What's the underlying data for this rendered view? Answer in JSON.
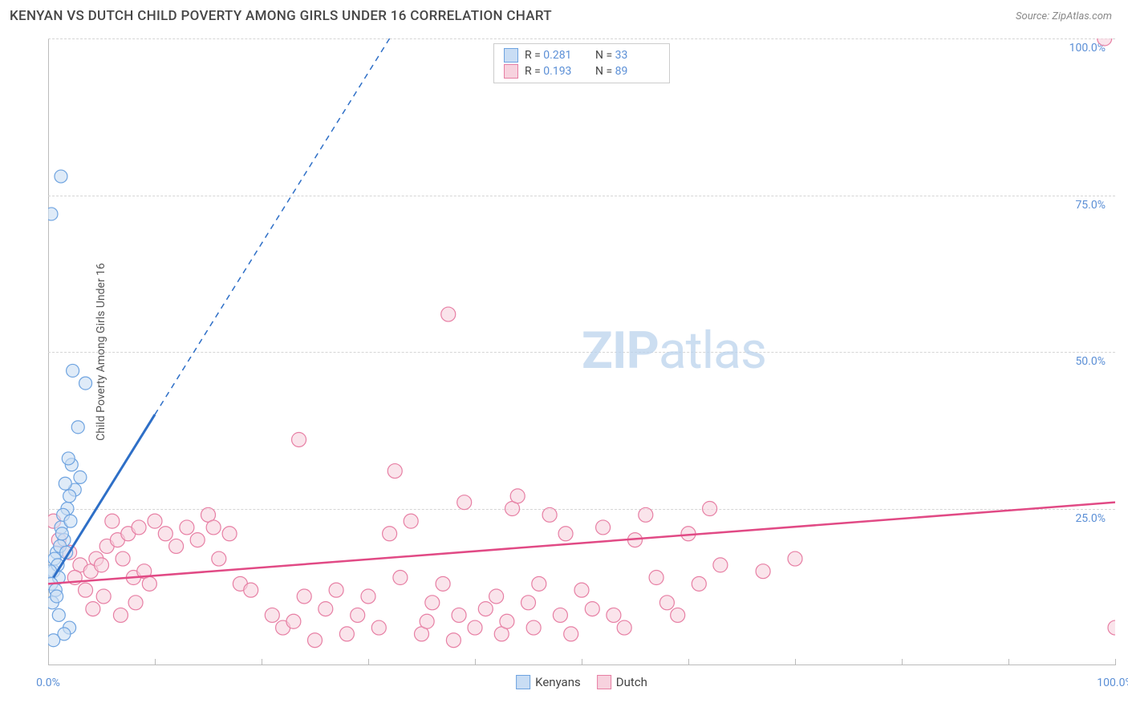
{
  "header": {
    "title": "KENYAN VS DUTCH CHILD POVERTY AMONG GIRLS UNDER 16 CORRELATION CHART",
    "source": "Source: ZipAtlas.com"
  },
  "y_axis_label": "Child Poverty Among Girls Under 16",
  "watermark": {
    "bold": "ZIP",
    "light": "atlas"
  },
  "chart": {
    "type": "scatter",
    "xlim": [
      0,
      100
    ],
    "ylim": [
      0,
      100
    ],
    "x_ticks": [
      0,
      10,
      20,
      30,
      40,
      50,
      60,
      70,
      80,
      90,
      100
    ],
    "x_tick_labels": {
      "0": "0.0%",
      "100": "100.0%"
    },
    "y_ticks": [
      25,
      50,
      75,
      100
    ],
    "y_tick_labels": {
      "25": "25.0%",
      "50": "50.0%",
      "75": "75.0%",
      "100": "100.0%"
    },
    "grid_color": "#d5d5d5",
    "background_color": "#ffffff"
  },
  "series": {
    "kenyans": {
      "label": "Kenyans",
      "r_value": "0.281",
      "n_value": "33",
      "fill": "#c9ddf4",
      "stroke": "#6ea3e0",
      "line_color": "#2e6fc7",
      "marker_radius": 8,
      "points": [
        [
          0.8,
          18
        ],
        [
          0.5,
          15
        ],
        [
          1.0,
          14
        ],
        [
          1.2,
          22
        ],
        [
          0.6,
          17
        ],
        [
          1.5,
          20
        ],
        [
          0.3,
          13
        ],
        [
          0.9,
          16
        ],
        [
          1.1,
          19
        ],
        [
          2.5,
          28
        ],
        [
          1.8,
          25
        ],
        [
          3.0,
          30
        ],
        [
          2.2,
          32
        ],
        [
          1.4,
          24
        ],
        [
          0.7,
          12
        ],
        [
          1.3,
          21
        ],
        [
          2.0,
          27
        ],
        [
          1.6,
          29
        ],
        [
          0.4,
          10
        ],
        [
          1.9,
          33
        ],
        [
          2.8,
          38
        ],
        [
          1.0,
          8
        ],
        [
          2.0,
          6
        ],
        [
          1.5,
          5
        ],
        [
          0.5,
          4
        ],
        [
          3.5,
          45
        ],
        [
          2.3,
          47
        ],
        [
          1.2,
          78
        ],
        [
          0.3,
          72
        ],
        [
          0.2,
          15
        ],
        [
          0.8,
          11
        ],
        [
          1.7,
          18
        ],
        [
          2.1,
          23
        ]
      ],
      "trend_solid": {
        "x1": 0.5,
        "y1": 14,
        "x2": 10,
        "y2": 40
      },
      "trend_dash": {
        "x1": 10,
        "y1": 40,
        "x2": 32,
        "y2": 100
      }
    },
    "dutch": {
      "label": "Dutch",
      "r_value": "0.193",
      "n_value": "89",
      "fill": "#f7d2de",
      "stroke": "#e77fa4",
      "line_color": "#e14a85",
      "marker_radius": 9,
      "points": [
        [
          0.5,
          23
        ],
        [
          1.0,
          20
        ],
        [
          2.0,
          18
        ],
        [
          3.0,
          16
        ],
        [
          4.0,
          15
        ],
        [
          4.5,
          17
        ],
        [
          5.0,
          16
        ],
        [
          5.5,
          19
        ],
        [
          6.0,
          23
        ],
        [
          6.5,
          20
        ],
        [
          7.0,
          17
        ],
        [
          7.5,
          21
        ],
        [
          8.0,
          14
        ],
        [
          8.5,
          22
        ],
        [
          9.0,
          15
        ],
        [
          10.0,
          23
        ],
        [
          11.0,
          21
        ],
        [
          12.0,
          19
        ],
        [
          13.0,
          22
        ],
        [
          14.0,
          20
        ],
        [
          15.0,
          24
        ],
        [
          15.5,
          22
        ],
        [
          16.0,
          17
        ],
        [
          17.0,
          21
        ],
        [
          18.0,
          13
        ],
        [
          19.0,
          12
        ],
        [
          21.0,
          8
        ],
        [
          22.0,
          6
        ],
        [
          23.0,
          7
        ],
        [
          23.5,
          36
        ],
        [
          24.0,
          11
        ],
        [
          25.0,
          4
        ],
        [
          26.0,
          9
        ],
        [
          27.0,
          12
        ],
        [
          28.0,
          5
        ],
        [
          29.0,
          8
        ],
        [
          30.0,
          11
        ],
        [
          31.0,
          6
        ],
        [
          32.0,
          21
        ],
        [
          32.5,
          31
        ],
        [
          33.0,
          14
        ],
        [
          34.0,
          23
        ],
        [
          35.0,
          5
        ],
        [
          35.5,
          7
        ],
        [
          36.0,
          10
        ],
        [
          37.0,
          13
        ],
        [
          37.5,
          56
        ],
        [
          38.0,
          4
        ],
        [
          38.5,
          8
        ],
        [
          39.0,
          26
        ],
        [
          40.0,
          6
        ],
        [
          41.0,
          9
        ],
        [
          42.0,
          11
        ],
        [
          42.5,
          5
        ],
        [
          43.0,
          7
        ],
        [
          43.5,
          25
        ],
        [
          44.0,
          27
        ],
        [
          45.0,
          10
        ],
        [
          45.5,
          6
        ],
        [
          46.0,
          13
        ],
        [
          47.0,
          24
        ],
        [
          48.0,
          8
        ],
        [
          48.5,
          21
        ],
        [
          49.0,
          5
        ],
        [
          50.0,
          12
        ],
        [
          51.0,
          9
        ],
        [
          52.0,
          22
        ],
        [
          53.0,
          8
        ],
        [
          54.0,
          6
        ],
        [
          55.0,
          20
        ],
        [
          56.0,
          24
        ],
        [
          57.0,
          14
        ],
        [
          58.0,
          10
        ],
        [
          59.0,
          8
        ],
        [
          60.0,
          21
        ],
        [
          61.0,
          13
        ],
        [
          62.0,
          25
        ],
        [
          63.0,
          16
        ],
        [
          67.0,
          15
        ],
        [
          70.0,
          17
        ],
        [
          99.0,
          100
        ],
        [
          100.0,
          6
        ],
        [
          2.5,
          14
        ],
        [
          3.5,
          12
        ],
        [
          4.2,
          9
        ],
        [
          5.2,
          11
        ],
        [
          6.8,
          8
        ],
        [
          8.2,
          10
        ],
        [
          9.5,
          13
        ]
      ],
      "trend_solid": {
        "x1": 0,
        "y1": 13,
        "x2": 100,
        "y2": 26
      }
    }
  },
  "legend_bottom": [
    {
      "key": "kenyans"
    },
    {
      "key": "dutch"
    }
  ]
}
